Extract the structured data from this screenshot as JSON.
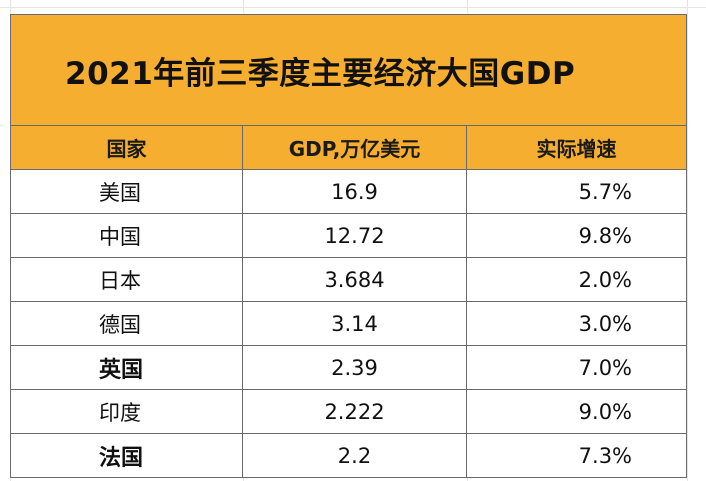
{
  "title": "2021年前三季度主要经济大国GDP",
  "headers": {
    "country": "国家",
    "gdp": "GDP,万亿美元",
    "growth": "实际增速"
  },
  "rows": [
    {
      "country": "美国",
      "gdp": "16.9",
      "growth": "5.7%"
    },
    {
      "country": "中国",
      "gdp": "12.72",
      "growth": "9.8%"
    },
    {
      "country": "日本",
      "gdp": "3.684",
      "growth": "2.0%"
    },
    {
      "country": "德国",
      "gdp": "3.14",
      "growth": "3.0%"
    },
    {
      "country": "英国",
      "gdp": "2.39",
      "growth": "7.0%"
    },
    {
      "country": "印度",
      "gdp": "2.222",
      "growth": "9.0%"
    },
    {
      "country": "法国",
      "gdp": "2.2",
      "growth": "7.3%"
    }
  ],
  "colors": {
    "header_fill": "#f5ae2f",
    "border": "#6a6a6a",
    "gridline": "#e4e4e4"
  }
}
